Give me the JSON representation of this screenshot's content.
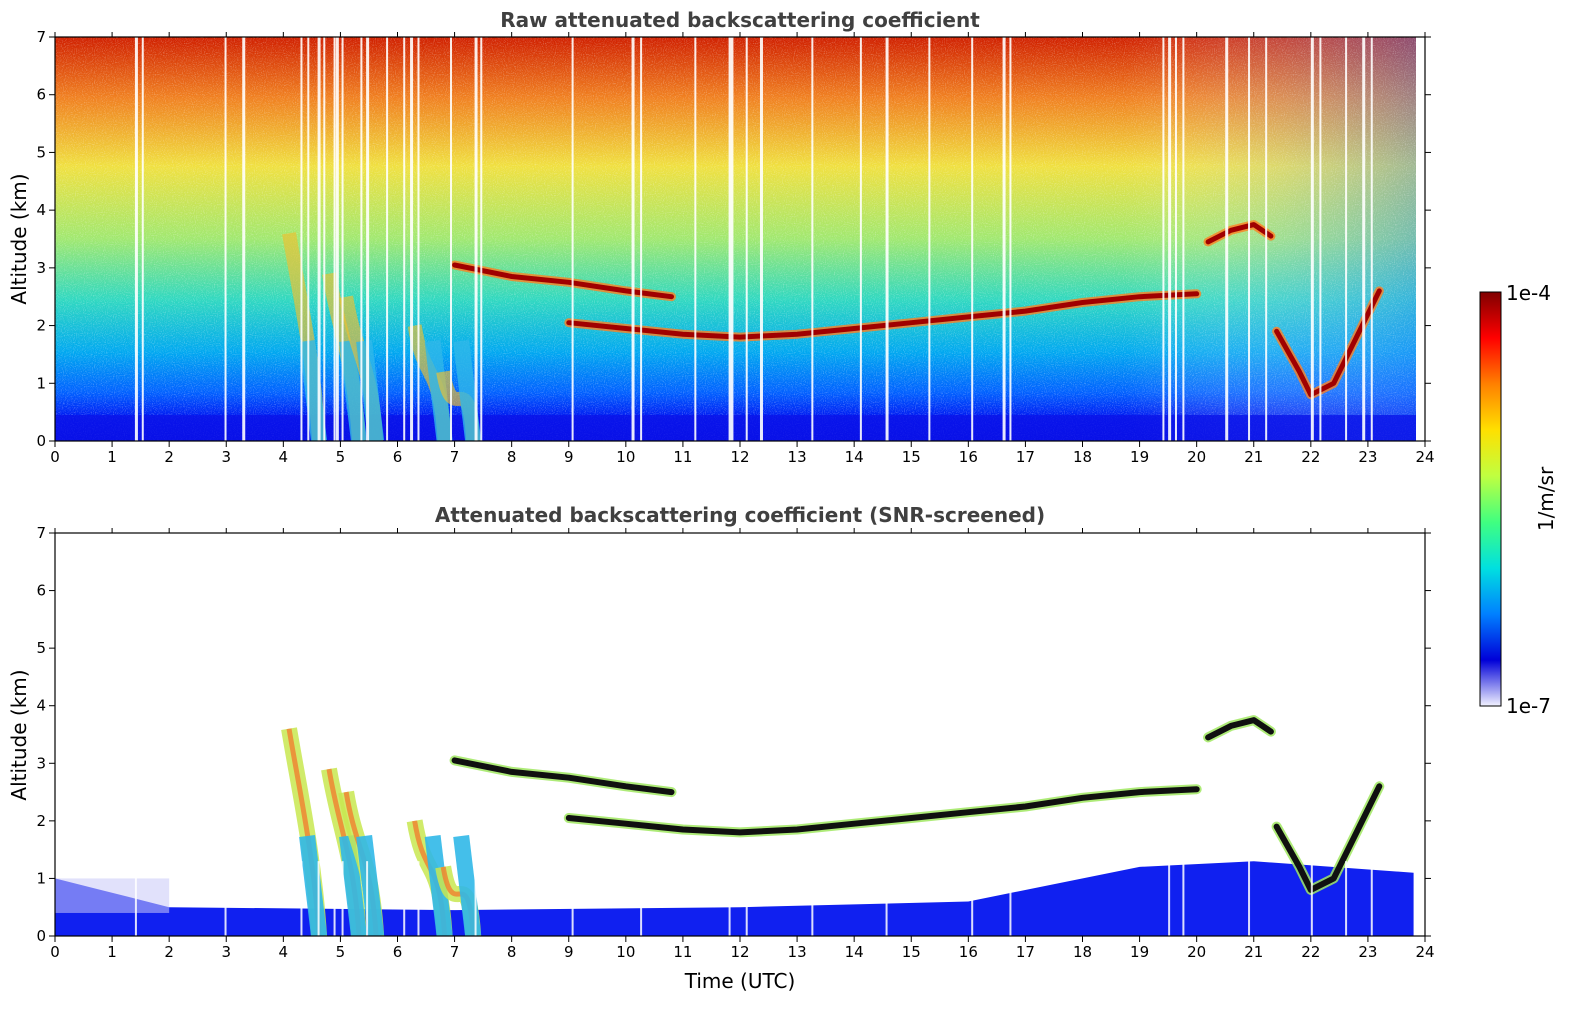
{
  "chart_data": [
    {
      "type": "heatmap",
      "title": "Raw attenuated backscattering coefficient",
      "xlabel": "",
      "ylabel": "Altitude (km)",
      "xlim": [
        0,
        24
      ],
      "ylim": [
        0,
        7
      ],
      "xticks": [
        0,
        1,
        2,
        3,
        4,
        5,
        6,
        7,
        8,
        9,
        10,
        11,
        12,
        13,
        14,
        15,
        16,
        17,
        18,
        19,
        20,
        21,
        22,
        23,
        24
      ],
      "yticks": [
        0,
        1,
        2,
        3,
        4,
        5,
        6,
        7
      ],
      "screened": false,
      "layers": [
        {
          "feature": "elevated aerosol/cloud layer",
          "points": [
            [
              7.0,
              3.05
            ],
            [
              8.0,
              2.85
            ],
            [
              9.0,
              2.75
            ],
            [
              10.0,
              2.6
            ],
            [
              10.8,
              2.5
            ]
          ]
        },
        {
          "feature": "main cloud layer",
          "points": [
            [
              9.0,
              2.05
            ],
            [
              10.0,
              1.95
            ],
            [
              11.0,
              1.85
            ],
            [
              12.0,
              1.8
            ],
            [
              13.0,
              1.85
            ],
            [
              14.0,
              1.95
            ],
            [
              15.0,
              2.05
            ],
            [
              16.0,
              2.15
            ],
            [
              17.0,
              2.25
            ],
            [
              18.0,
              2.4
            ],
            [
              19.0,
              2.5
            ],
            [
              20.0,
              2.55
            ]
          ]
        },
        {
          "feature": "cloud arc",
          "points": [
            [
              20.2,
              3.45
            ],
            [
              20.6,
              3.65
            ],
            [
              21.0,
              3.75
            ],
            [
              21.3,
              3.55
            ]
          ]
        },
        {
          "feature": "cloud dip",
          "points": [
            [
              21.4,
              1.9
            ],
            [
              21.8,
              1.2
            ],
            [
              22.0,
              0.8
            ],
            [
              22.4,
              1.0
            ],
            [
              22.8,
              1.8
            ],
            [
              23.2,
              2.6
            ]
          ]
        }
      ],
      "precipitation_streaks": [
        [
          4.1,
          3.6
        ],
        [
          4.8,
          2.9
        ],
        [
          5.1,
          2.5
        ],
        [
          6.3,
          2.0
        ],
        [
          6.8,
          1.2
        ]
      ]
    },
    {
      "type": "heatmap",
      "title": "Attenuated backscattering coefficient (SNR-screened)",
      "xlabel": "Time (UTC)",
      "ylabel": "Altitude (km)",
      "xlim": [
        0,
        24
      ],
      "ylim": [
        0,
        7
      ],
      "xticks": [
        0,
        1,
        2,
        3,
        4,
        5,
        6,
        7,
        8,
        9,
        10,
        11,
        12,
        13,
        14,
        15,
        16,
        17,
        18,
        19,
        20,
        21,
        22,
        23,
        24
      ],
      "yticks": [
        0,
        1,
        2,
        3,
        4,
        5,
        6,
        7
      ],
      "screened": true,
      "boundary_layer_top_km": [
        [
          0,
          1.0
        ],
        [
          2,
          0.5
        ],
        [
          7,
          0.45
        ],
        [
          12,
          0.5
        ],
        [
          16,
          0.6
        ],
        [
          19,
          1.2
        ],
        [
          21,
          1.3
        ],
        [
          23.8,
          1.1
        ]
      ]
    }
  ],
  "colorbar": {
    "label": "1/m/sr",
    "max_label": "1e-4",
    "min_label": "1e-7",
    "scale": "log",
    "colormap": [
      "#f2f2ff",
      "#0000d8",
      "#0080ff",
      "#00e0e0",
      "#40ff80",
      "#c0ff40",
      "#ffe000",
      "#ff8000",
      "#ff0000",
      "#800000"
    ]
  }
}
